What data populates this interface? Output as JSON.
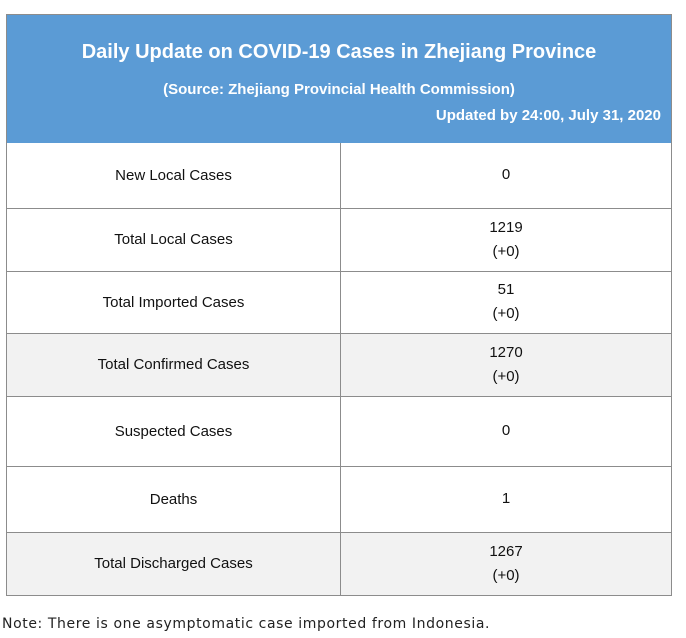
{
  "header": {
    "title": "Daily Update on COVID-19 Cases in Zhejiang Province",
    "source": "(Source: Zhejiang Provincial Health Commission)",
    "updated": "Updated by 24:00, July 31, 2020"
  },
  "rows": [
    {
      "label": "New Local Cases",
      "value": "0",
      "change": ""
    },
    {
      "label": "Total Local Cases",
      "value": "1219",
      "change": "(+0)"
    },
    {
      "label": "Total Imported Cases",
      "value": "51",
      "change": "(+0)"
    },
    {
      "label": "Total Confirmed Cases",
      "value": "1270",
      "change": "(+0)"
    },
    {
      "label": "Suspected Cases",
      "value": "0",
      "change": ""
    },
    {
      "label": "Deaths",
      "value": "1",
      "change": ""
    },
    {
      "label": "Total Discharged Cases",
      "value": "1267",
      "change": "(+0)"
    }
  ],
  "note": "Note: There is one asymptomatic case imported from Indonesia."
}
